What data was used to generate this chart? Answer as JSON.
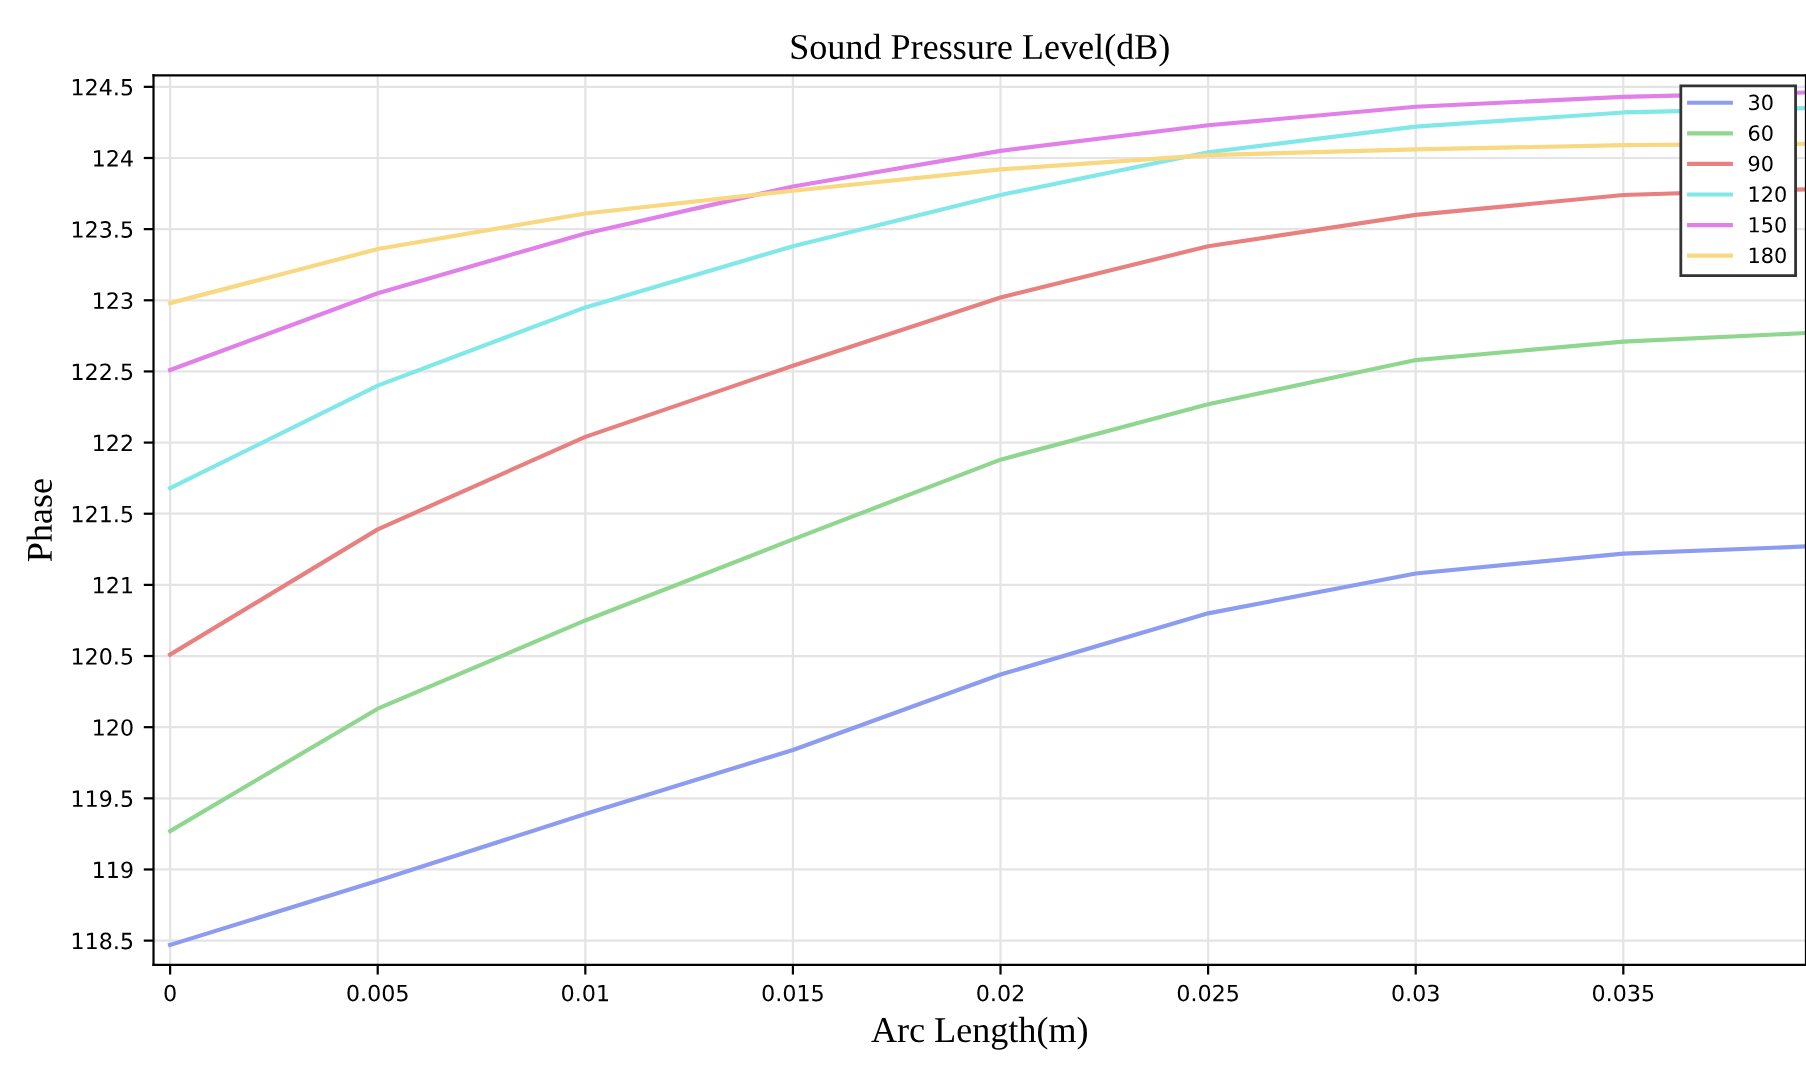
{
  "chart_data": {
    "type": "line",
    "title": "Sound Pressure Level(dB)",
    "xlabel": "Arc Length(m)",
    "ylabel": "Phase",
    "x": [
      0,
      0.005,
      0.01,
      0.015,
      0.02,
      0.025,
      0.03,
      0.035,
      0.0394
    ],
    "series": [
      {
        "name": "30",
        "color": "#8c9cf0",
        "values": [
          118.47,
          118.92,
          119.39,
          119.84,
          120.37,
          120.8,
          121.08,
          121.22,
          121.27
        ]
      },
      {
        "name": "60",
        "color": "#8fd68f",
        "values": [
          119.27,
          120.13,
          120.75,
          121.32,
          121.88,
          122.27,
          122.58,
          122.71,
          122.77
        ]
      },
      {
        "name": "90",
        "color": "#e88080",
        "values": [
          120.51,
          121.39,
          122.04,
          122.54,
          123.02,
          123.38,
          123.6,
          123.74,
          123.78
        ]
      },
      {
        "name": "120",
        "color": "#80e8e8",
        "values": [
          121.68,
          122.4,
          122.95,
          123.38,
          123.74,
          124.04,
          124.22,
          124.32,
          124.35
        ]
      },
      {
        "name": "150",
        "color": "#e080e8",
        "values": [
          122.51,
          123.05,
          123.47,
          123.8,
          124.05,
          124.23,
          124.36,
          124.43,
          124.46
        ]
      },
      {
        "name": "180",
        "color": "#f8d880",
        "values": [
          122.98,
          123.36,
          123.61,
          123.77,
          123.92,
          124.02,
          124.06,
          124.09,
          124.1
        ]
      }
    ],
    "xlim": [
      -0.0004,
      0.0394
    ],
    "ylim": [
      118.33,
      124.58
    ],
    "xticks": [
      0,
      0.005,
      0.01,
      0.015,
      0.02,
      0.025,
      0.03,
      0.035
    ],
    "yticks": [
      118.5,
      119,
      119.5,
      120,
      120.5,
      121,
      121.5,
      122,
      122.5,
      123,
      123.5,
      124,
      124.5
    ],
    "grid": true,
    "legend": "top right",
    "marker": "none",
    "line_style": "solid"
  }
}
